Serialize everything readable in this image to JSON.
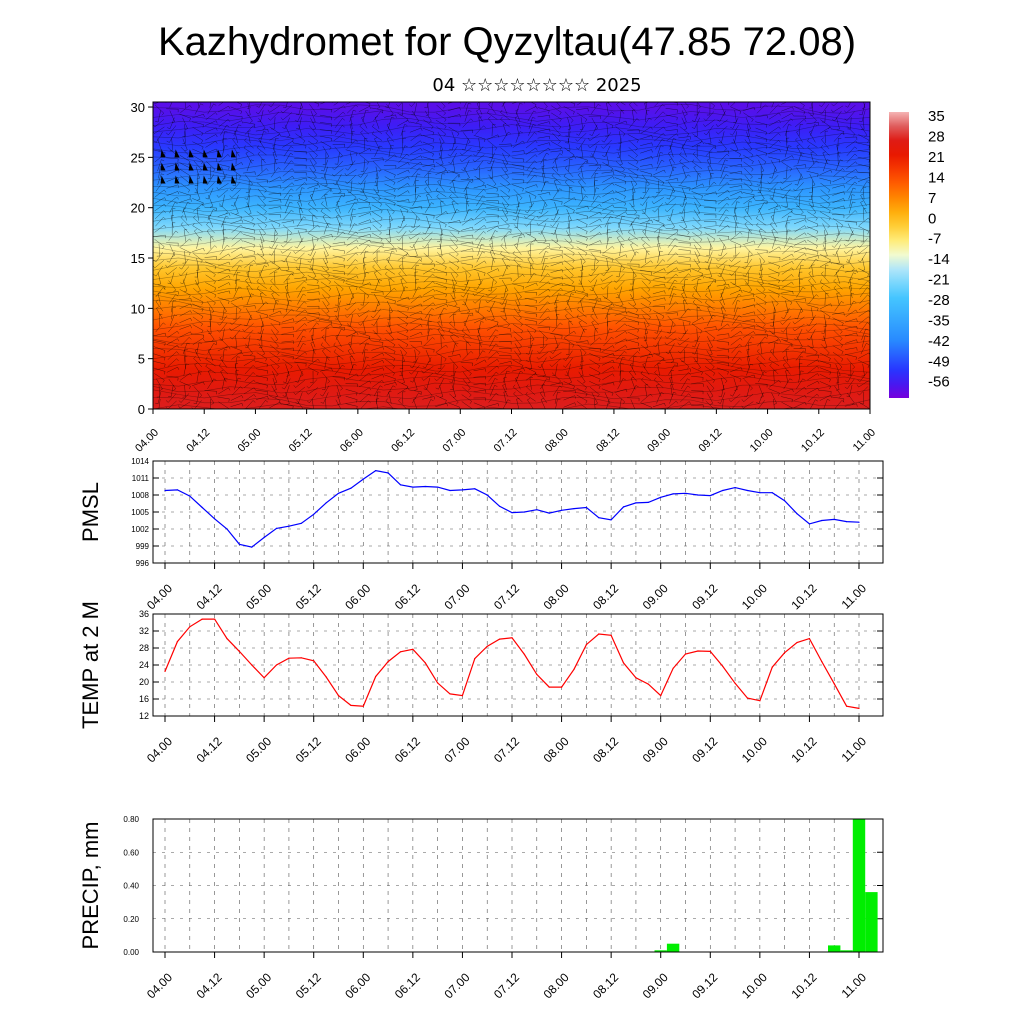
{
  "title": "Kazhydromet for Qyzyltau(47.85 72.08)",
  "subtitle": "04 ☆☆☆☆☆☆☆☆ 2025",
  "colorbar_labels": [
    "35",
    "28",
    "21",
    "14",
    "7",
    "0",
    "-7",
    "-14",
    "-21",
    "-28",
    "-35",
    "-42",
    "-49",
    "-56"
  ],
  "colors": {
    "pmsl_line": "#0000ff",
    "temp_line": "#ff0000",
    "precip_bar": "#00ee00",
    "axis": "#000000"
  },
  "chart_data": [
    {
      "type": "heatmap",
      "title": "",
      "xlabel": "",
      "ylabel": "",
      "x_tick_labels": [
        "04.00",
        "04.12",
        "05.00",
        "05.12",
        "06.00",
        "06.12",
        "07.00",
        "07.12",
        "08.00",
        "08.12",
        "09.00",
        "09.12",
        "10.00",
        "10.12",
        "11.00"
      ],
      "y_ticks": [
        0,
        5,
        10,
        15,
        20,
        25,
        30
      ],
      "ylim": [
        0,
        30.5
      ],
      "xlim_hours": [
        0,
        168
      ],
      "colorbar": {
        "min": -60,
        "max": 38,
        "label_values": [
          35,
          28,
          21,
          14,
          7,
          0,
          -7,
          -14,
          -21,
          -28,
          -35,
          -42,
          -49,
          -56
        ]
      },
      "temperature_by_level": {
        "levels": [
          0,
          2,
          4,
          6,
          8,
          10,
          12,
          14,
          16,
          18,
          20,
          22,
          24,
          26,
          28,
          30
        ],
        "values": [
          30,
          27,
          23,
          19,
          15,
          10,
          5,
          0,
          -8,
          -20,
          -30,
          -38,
          -45,
          -50,
          -54,
          -57
        ]
      },
      "wind_barbs": true
    },
    {
      "type": "line",
      "ylabel": "PMSL",
      "y_ticks": [
        996,
        999,
        1002,
        1005,
        1008,
        1011,
        1014
      ],
      "ylim": [
        996,
        1014
      ],
      "x_tick_labels": [
        "04.00",
        "04.12",
        "05.00",
        "05.12",
        "06.00",
        "06.12",
        "07.00",
        "07.12",
        "08.00",
        "08.12",
        "09.00",
        "09.12",
        "10.00",
        "10.12",
        "11.00"
      ],
      "x_step_hours": 3,
      "series": [
        {
          "values": [
            1008.8,
            1008.9,
            1007.8,
            1005.8,
            1003.8,
            1002.0,
            999.3,
            998.8,
            1000.5,
            1002.1,
            1002.5,
            1003.0,
            1004.6,
            1006.6,
            1008.3,
            1009.2,
            1010.8,
            1012.3,
            1011.9,
            1009.8,
            1009.4,
            1009.5,
            1009.4,
            1008.8,
            1008.9,
            1009.1,
            1008.0,
            1006.0,
            1004.9,
            1005.0,
            1005.4,
            1004.8,
            1005.3,
            1005.6,
            1005.8,
            1004.0,
            1003.6,
            1005.9,
            1006.6,
            1006.7,
            1007.6,
            1008.2,
            1008.3,
            1008.0,
            1007.9,
            1008.8,
            1009.3,
            1008.8,
            1008.4,
            1008.4,
            1007.0,
            1004.7,
            1002.9,
            1003.5,
            1003.7,
            1003.3,
            1003.2
          ]
        }
      ]
    },
    {
      "type": "line",
      "ylabel": "TEMP at 2 M",
      "y_ticks": [
        12,
        16,
        20,
        24,
        28,
        32,
        36
      ],
      "ylim": [
        12,
        36
      ],
      "x_tick_labels": [
        "04.00",
        "04.12",
        "05.00",
        "05.12",
        "06.00",
        "06.12",
        "07.00",
        "07.12",
        "08.00",
        "08.12",
        "09.00",
        "09.12",
        "10.00",
        "10.12",
        "11.00"
      ],
      "x_step_hours": 3,
      "series": [
        {
          "values": [
            22.5,
            29.5,
            33.0,
            34.8,
            34.8,
            30.2,
            27.2,
            24.0,
            21.0,
            24.0,
            25.6,
            25.7,
            25.0,
            21.2,
            16.8,
            14.5,
            14.3,
            21.3,
            24.8,
            27.1,
            27.7,
            24.5,
            19.8,
            17.2,
            16.8,
            25.5,
            28.4,
            30.1,
            30.4,
            26.5,
            21.8,
            18.8,
            18.8,
            23.0,
            28.8,
            31.3,
            31.0,
            24.5,
            21.0,
            19.5,
            16.8,
            23.2,
            26.6,
            27.3,
            27.2,
            23.7,
            19.7,
            16.2,
            15.6,
            23.5,
            26.9,
            29.3,
            30.2,
            24.8,
            19.6,
            14.3,
            13.8
          ]
        }
      ]
    },
    {
      "type": "bar",
      "ylabel": "PRECIP, mm",
      "y_tick_labels": [
        "0.00",
        "0.20",
        "0.40",
        "0.60",
        "0.80"
      ],
      "ylim": [
        0,
        0.8
      ],
      "x_tick_labels": [
        "04.00",
        "04.12",
        "05.00",
        "05.12",
        "06.00",
        "06.12",
        "07.00",
        "07.12",
        "08.00",
        "08.12",
        "09.00",
        "09.12",
        "10.00",
        "10.12",
        "11.00"
      ],
      "x_step_hours": 3,
      "values": [
        0,
        0,
        0,
        0,
        0,
        0,
        0,
        0,
        0,
        0,
        0,
        0,
        0,
        0,
        0,
        0,
        0,
        0,
        0,
        0,
        0,
        0,
        0,
        0,
        0,
        0,
        0,
        0,
        0,
        0,
        0,
        0,
        0,
        0,
        0,
        0,
        0,
        0,
        0,
        0,
        0.01,
        0.05,
        0,
        0,
        0,
        0,
        0,
        0,
        0,
        0,
        0,
        0,
        0,
        0,
        0.04,
        0.01,
        0.8,
        0.36
      ]
    }
  ]
}
